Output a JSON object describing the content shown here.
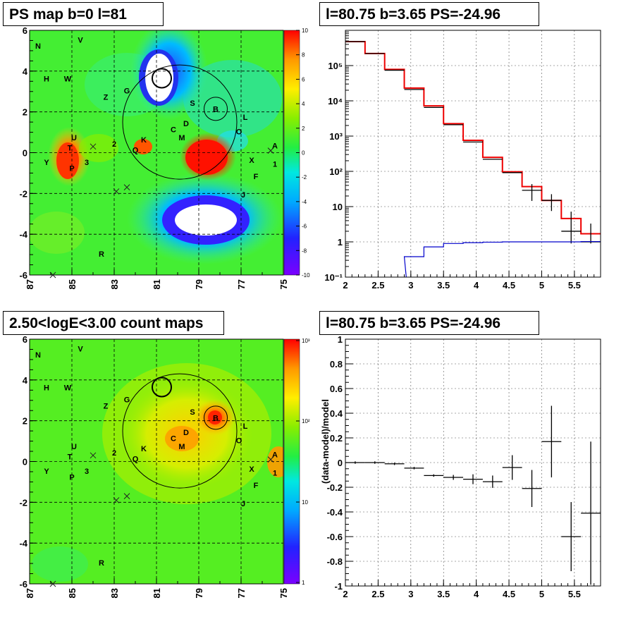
{
  "titles": {
    "map_top": "PS map b=0 l=81",
    "map_bottom": "2.50<logE<3.00 count maps",
    "spectrum": "l=80.75 b=3.65 PS=-24.96",
    "residual": "l=80.75 b=3.65 PS=-24.96"
  },
  "maps": {
    "x_ticks": [
      "87",
      "85",
      "83",
      "81",
      "79",
      "77",
      "75"
    ],
    "y_ticks": [
      "6",
      "4",
      "2",
      "0",
      "-2",
      "-4",
      "-6"
    ],
    "xlim": [
      87,
      75
    ],
    "ylim": [
      -6,
      6
    ],
    "source_labels": [
      {
        "t": "N",
        "l": 86.6,
        "b": 5.1
      },
      {
        "t": "V",
        "l": 84.6,
        "b": 5.4
      },
      {
        "t": "H",
        "l": 86.2,
        "b": 3.5
      },
      {
        "t": "W",
        "l": 85.2,
        "b": 3.5
      },
      {
        "t": "Z",
        "l": 83.4,
        "b": 2.6
      },
      {
        "t": "G",
        "l": 82.4,
        "b": 2.9
      },
      {
        "t": "S",
        "l": 79.3,
        "b": 2.3
      },
      {
        "t": "B",
        "l": 78.2,
        "b": 2.0
      },
      {
        "t": "D",
        "l": 79.6,
        "b": 1.3
      },
      {
        "t": "C",
        "l": 80.2,
        "b": 1.0
      },
      {
        "t": "M",
        "l": 79.8,
        "b": 0.6
      },
      {
        "t": "L",
        "l": 76.8,
        "b": 1.6
      },
      {
        "t": "O",
        "l": 77.1,
        "b": 0.9
      },
      {
        "t": "U",
        "l": 84.9,
        "b": 0.6
      },
      {
        "t": "T",
        "l": 85.1,
        "b": 0.1
      },
      {
        "t": "2",
        "l": 83.0,
        "b": 0.3
      },
      {
        "t": "K",
        "l": 81.6,
        "b": 0.5
      },
      {
        "t": "Q",
        "l": 82.0,
        "b": 0.0
      },
      {
        "t": "Y",
        "l": 86.2,
        "b": -0.6
      },
      {
        "t": "P",
        "l": 85.0,
        "b": -0.9
      },
      {
        "t": "3",
        "l": 84.3,
        "b": -0.6
      },
      {
        "t": "X",
        "l": 76.5,
        "b": -0.5
      },
      {
        "t": "A",
        "l": 75.4,
        "b": 0.2
      },
      {
        "t": "1",
        "l": 75.4,
        "b": -0.7
      },
      {
        "t": "F",
        "l": 76.3,
        "b": -1.3
      },
      {
        "t": "J",
        "l": 76.9,
        "b": -2.2
      },
      {
        "t": "R",
        "l": 83.6,
        "b": -5.1
      }
    ],
    "crosses": [
      {
        "l": 84.0,
        "b": 0.3
      },
      {
        "l": 82.9,
        "b": -1.9
      },
      {
        "l": 82.4,
        "b": -1.7
      },
      {
        "l": 75.6,
        "b": 0.1
      },
      {
        "l": 85.9,
        "b": -6.0
      }
    ],
    "circles": [
      {
        "l": 79.9,
        "b": 1.5,
        "r": 2.7
      },
      {
        "l": 80.75,
        "b": 3.65,
        "r": 0.45
      },
      {
        "l": 78.2,
        "b": 2.15,
        "r": 0.55
      }
    ],
    "ps_colorbar_ticks": [
      "10",
      "8",
      "6",
      "4",
      "2",
      "0",
      "-2",
      "-4",
      "-6",
      "-8",
      "-10"
    ],
    "count_colorbar_ticks": [
      "10³",
      "10²",
      "10",
      "1"
    ]
  },
  "chart_data": [
    {
      "type": "line",
      "title": "l=80.75 b=3.65 PS=-24.96",
      "xlabel": "",
      "ylabel": "",
      "xlim": [
        2,
        5.9
      ],
      "ylim": [
        0.1,
        1000000
      ],
      "yscale": "log",
      "grid": true,
      "x_ticks": [
        "2",
        "2.5",
        "3",
        "3.5",
        "4",
        "4.5",
        "5",
        "5.5"
      ],
      "y_ticks": [
        "10⁻¹",
        "1",
        "10",
        "10²",
        "10³",
        "10⁴",
        "10⁵"
      ],
      "bin_edges": [
        2.0,
        2.3,
        2.6,
        2.9,
        3.2,
        3.5,
        3.8,
        4.1,
        4.4,
        4.7,
        5.0,
        5.3,
        5.6,
        5.9
      ],
      "series": [
        {
          "color": "#ee0000",
          "style": "step",
          "values": [
            480000,
            220000,
            78000,
            23000,
            7200,
            2250,
            760,
            250,
            97,
            37,
            15,
            4.6,
            1.7
          ]
        },
        {
          "color": "#000000",
          "style": "points",
          "values": [
            480000,
            220000,
            74000,
            21000,
            6500,
            2100,
            680,
            220,
            92,
            29,
            15,
            2.0,
            1.0
          ],
          "err_low": [
            0,
            0,
            0,
            0,
            0,
            0,
            0,
            0,
            0,
            0.5,
            0.5,
            0.55,
            0.1
          ],
          "err_high": [
            0,
            0,
            0,
            0,
            0,
            0,
            0,
            0,
            0,
            0.5,
            0.5,
            2.6,
            2.3
          ]
        },
        {
          "color": "#0000cc",
          "style": "step",
          "values": [
            null,
            null,
            null,
            0.38,
            0.72,
            0.9,
            0.95,
            0.98,
            1.0,
            1.0,
            1.0,
            1.0,
            1.02
          ]
        }
      ]
    },
    {
      "type": "scatter",
      "title": "l=80.75 b=3.65 PS=-24.96",
      "xlabel": "",
      "ylabel": "(data-model)/model",
      "xlim": [
        2,
        5.9
      ],
      "ylim": [
        -1,
        1
      ],
      "grid": true,
      "x_ticks": [
        "2",
        "2.5",
        "3",
        "3.5",
        "4",
        "4.5",
        "5",
        "5.5"
      ],
      "y_ticks": [
        "1",
        "0.8",
        "0.6",
        "0.4",
        "0.2",
        "0",
        "-0.2",
        "-0.4",
        "-0.6",
        "-0.8",
        "-1"
      ],
      "points": [
        {
          "x": 2.15,
          "y": 0.0,
          "ex": 0.15,
          "ey": 0.01
        },
        {
          "x": 2.45,
          "y": 0.0,
          "ex": 0.15,
          "ey": 0.01
        },
        {
          "x": 2.75,
          "y": -0.01,
          "ex": 0.15,
          "ey": 0.01
        },
        {
          "x": 3.05,
          "y": -0.045,
          "ex": 0.15,
          "ey": 0.01
        },
        {
          "x": 3.35,
          "y": -0.105,
          "ex": 0.15,
          "ey": 0.01
        },
        {
          "x": 3.65,
          "y": -0.12,
          "ex": 0.15,
          "ey": 0.02
        },
        {
          "x": 3.95,
          "y": -0.135,
          "ex": 0.15,
          "ey": 0.04
        },
        {
          "x": 4.25,
          "y": -0.155,
          "ex": 0.15,
          "ey": 0.05
        },
        {
          "x": 4.55,
          "y": -0.04,
          "ex": 0.15,
          "ey": 0.1
        },
        {
          "x": 4.85,
          "y": -0.21,
          "ex": 0.15,
          "ey": 0.15
        },
        {
          "x": 5.15,
          "y": 0.17,
          "ex": 0.15,
          "ey": 0.29
        },
        {
          "x": 5.45,
          "y": -0.6,
          "ex": 0.15,
          "ey": 0.28
        },
        {
          "x": 5.75,
          "y": -0.41,
          "ex": 0.15,
          "ey": 0.58
        }
      ]
    }
  ]
}
